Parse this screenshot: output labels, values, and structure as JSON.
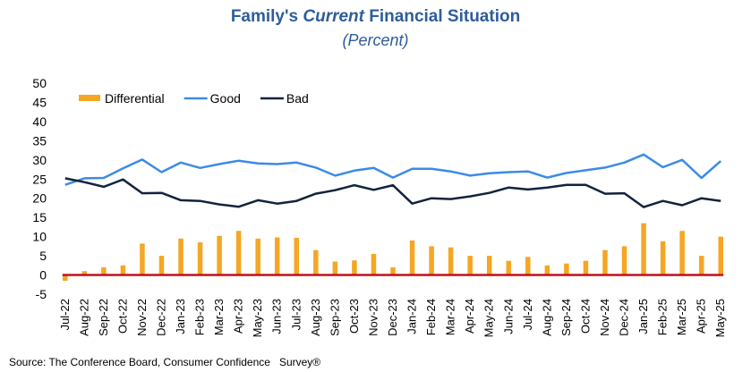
{
  "chart_data": {
    "type": "bar+line",
    "title": {
      "pre": "Family's ",
      "emph": "Current",
      "post": " Financial Situation"
    },
    "subtitle": "(Percent)",
    "source": "Source: The Conference Board, Consumer Confidence   Survey®",
    "ylim": [
      -5,
      50
    ],
    "yticks": [
      -5,
      0,
      5,
      10,
      15,
      20,
      25,
      30,
      35,
      40,
      45,
      50
    ],
    "legend_position": "top-left",
    "categories": [
      "Jul-22",
      "Aug-22",
      "Sep-22",
      "Oct-22",
      "Nov-22",
      "Dec-22",
      "Jan-23",
      "Feb-23",
      "Mar-23",
      "Apr-23",
      "May-23",
      "Jun-23",
      "Jul-23",
      "Aug-23",
      "Sep-23",
      "Oct-23",
      "Nov-23",
      "Dec-23",
      "Jan-24",
      "Feb-24",
      "Mar-24",
      "Apr-24",
      "May-24",
      "Jun-24",
      "Jul-24",
      "Aug-24",
      "Sep-24",
      "Oct-24",
      "Nov-24",
      "Dec-24",
      "Jan-25",
      "Feb-25",
      "Mar-25",
      "Apr-25",
      "May-25"
    ],
    "series": [
      {
        "name": "Differential",
        "kind": "bar",
        "color": "#f5a623",
        "values": [
          -1.5,
          1.0,
          2.0,
          2.5,
          8.2,
          5.0,
          9.5,
          8.5,
          10.2,
          11.5,
          9.5,
          9.8,
          9.7,
          6.5,
          3.5,
          3.8,
          5.5,
          2.0,
          9.0,
          7.5,
          7.2,
          5.0,
          5.0,
          3.7,
          4.7,
          2.5,
          3.0,
          3.7,
          6.5,
          7.5,
          13.5,
          8.8,
          11.5,
          5.0,
          10.0
        ]
      },
      {
        "name": "Good",
        "kind": "line",
        "color": "#3c8be6",
        "values": [
          23.5,
          25.2,
          25.3,
          27.8,
          30.1,
          26.8,
          29.3,
          27.9,
          28.9,
          29.8,
          29.1,
          28.9,
          29.3,
          28.0,
          25.9,
          27.2,
          27.9,
          25.4,
          27.7,
          27.7,
          27.0,
          25.9,
          26.5,
          26.8,
          27.0,
          25.4,
          26.6,
          27.3,
          28.0,
          29.3,
          31.4,
          28.1,
          30.0,
          25.3,
          29.7
        ]
      },
      {
        "name": "Bad",
        "kind": "line",
        "color": "#12233d",
        "values": [
          25.2,
          24.2,
          23.0,
          24.9,
          21.3,
          21.4,
          19.5,
          19.3,
          18.4,
          17.8,
          19.5,
          18.6,
          19.3,
          21.2,
          22.1,
          23.4,
          22.2,
          23.4,
          18.6,
          20.0,
          19.8,
          20.5,
          21.4,
          22.8,
          22.3,
          22.8,
          23.5,
          23.5,
          21.2,
          21.3,
          17.7,
          19.3,
          18.2,
          20.0,
          19.3
        ]
      }
    ],
    "zero_line_color": "#c0121a",
    "grid": false
  }
}
